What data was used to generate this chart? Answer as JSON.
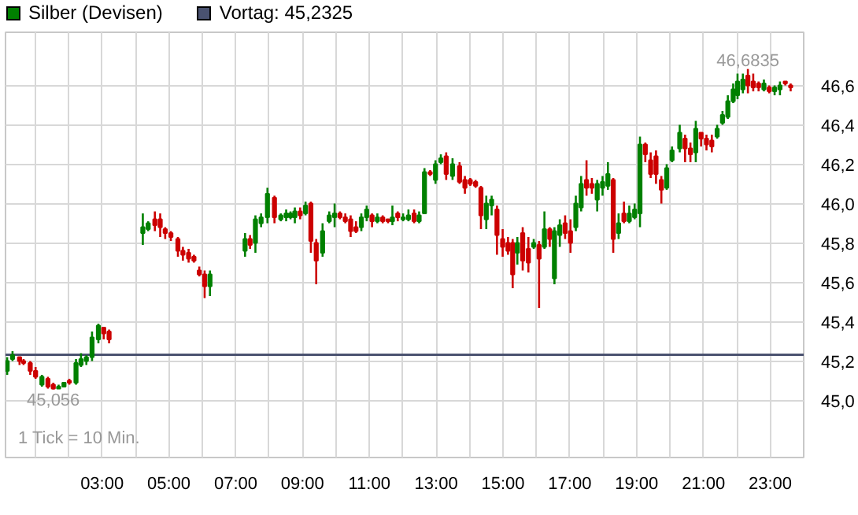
{
  "chart_data": {
    "type": "candlestick",
    "series": [
      {
        "name": "Silber (Devisen)",
        "color": "#008000",
        "x": [
          0.16,
          0.32,
          0.53,
          0.65,
          0.85,
          1.01,
          1.2,
          1.38,
          1.54,
          1.7,
          1.86,
          2.02,
          2.22,
          2.37,
          2.53,
          2.7,
          2.89,
          3.05,
          3.21,
          4.22,
          4.38,
          4.58,
          4.74,
          4.89,
          5.06,
          5.27,
          5.42,
          5.59,
          5.75,
          5.91,
          6.07,
          6.23,
          7.28,
          7.43,
          7.59,
          7.76,
          7.95,
          8.16,
          8.35,
          8.51,
          8.64,
          8.77,
          8.93,
          9.09,
          9.25,
          9.41,
          9.6,
          9.8,
          9.96,
          10.12,
          10.28,
          10.44,
          10.6,
          10.76,
          10.92,
          11.08,
          11.24,
          11.4,
          11.56,
          11.69,
          11.85,
          12.01,
          12.17,
          12.34,
          12.49,
          12.65,
          12.82,
          12.98,
          13.14,
          13.3,
          13.49,
          13.7,
          13.86,
          14.02,
          14.18,
          14.34,
          14.5,
          14.66,
          14.82,
          14.99,
          15.15,
          15.29,
          15.43,
          15.59,
          15.76,
          15.92,
          16.08,
          16.24,
          16.4,
          16.54,
          16.7,
          16.86,
          17.02,
          17.18,
          17.34,
          17.5,
          17.66,
          17.82,
          17.98,
          18.14,
          18.3,
          18.46,
          18.62,
          18.78,
          18.94,
          19.1,
          19.26,
          19.42,
          19.58,
          19.74,
          19.9,
          20.06,
          20.29,
          20.45,
          20.61,
          20.77,
          20.93,
          21.09,
          21.25,
          21.41,
          21.57,
          21.73,
          21.89,
          22.02,
          22.18,
          22.33,
          22.49,
          22.65,
          22.81,
          22.97,
          23.13,
          23.29,
          23.45,
          23.61
        ],
        "ohlc": [
          [
            45.15,
            45.22,
            45.13,
            45.2
          ],
          [
            45.21,
            45.25,
            45.2,
            45.23
          ],
          [
            45.22,
            45.22,
            45.18,
            45.2
          ],
          [
            45.2,
            45.21,
            45.18,
            45.19
          ],
          [
            45.19,
            45.2,
            45.13,
            45.15
          ],
          [
            45.15,
            45.17,
            45.11,
            45.12
          ],
          [
            45.08,
            45.13,
            45.07,
            45.12
          ],
          [
            45.11,
            45.12,
            45.06,
            45.07
          ],
          [
            45.08,
            45.09,
            45.056,
            45.06
          ],
          [
            45.06,
            45.08,
            45.06,
            45.07
          ],
          [
            45.07,
            45.09,
            45.07,
            45.09
          ],
          [
            45.1,
            45.11,
            45.08,
            45.09
          ],
          [
            45.09,
            45.21,
            45.08,
            45.19
          ],
          [
            45.18,
            45.24,
            45.17,
            45.21
          ],
          [
            45.2,
            45.23,
            45.18,
            45.22
          ],
          [
            45.22,
            45.35,
            45.2,
            45.32
          ],
          [
            45.31,
            45.39,
            45.29,
            45.38
          ],
          [
            45.37,
            45.37,
            45.31,
            45.34
          ],
          [
            45.35,
            45.36,
            45.29,
            45.31
          ],
          [
            45.85,
            45.95,
            45.79,
            45.88
          ],
          [
            45.87,
            45.91,
            45.86,
            45.9
          ],
          [
            45.92,
            45.96,
            45.86,
            45.89
          ],
          [
            45.92,
            45.95,
            45.83,
            45.88
          ],
          [
            45.87,
            45.88,
            45.82,
            45.85
          ],
          [
            45.85,
            45.86,
            45.81,
            45.83
          ],
          [
            45.82,
            45.83,
            45.73,
            45.76
          ],
          [
            45.76,
            45.78,
            45.71,
            45.74
          ],
          [
            45.75,
            45.77,
            45.7,
            45.72
          ],
          [
            45.73,
            45.74,
            45.7,
            45.71
          ],
          [
            45.66,
            45.68,
            45.63,
            45.64
          ],
          [
            45.64,
            45.66,
            45.52,
            45.58
          ],
          [
            45.58,
            45.66,
            45.53,
            45.64
          ],
          [
            45.76,
            45.85,
            45.73,
            45.82
          ],
          [
            45.82,
            45.84,
            45.77,
            45.79
          ],
          [
            45.8,
            45.94,
            45.75,
            45.92
          ],
          [
            45.9,
            45.95,
            45.88,
            45.93
          ],
          [
            45.93,
            46.08,
            45.9,
            46.05
          ],
          [
            46.03,
            46.04,
            45.9,
            45.93
          ],
          [
            45.92,
            45.95,
            45.91,
            45.94
          ],
          [
            45.93,
            45.97,
            45.91,
            45.95
          ],
          [
            45.93,
            45.96,
            45.92,
            45.95
          ],
          [
            45.93,
            45.98,
            45.9,
            45.96
          ],
          [
            45.96,
            45.98,
            45.92,
            45.94
          ],
          [
            45.95,
            46.01,
            45.94,
            45.99
          ],
          [
            46.0,
            46.01,
            45.75,
            45.81
          ],
          [
            45.8,
            45.82,
            45.59,
            45.71
          ],
          [
            45.75,
            45.9,
            45.73,
            45.86
          ],
          [
            45.91,
            45.96,
            45.9,
            45.94
          ],
          [
            45.93,
            46.0,
            45.88,
            45.95
          ],
          [
            45.95,
            45.96,
            45.92,
            45.93
          ],
          [
            45.93,
            45.95,
            45.9,
            45.91
          ],
          [
            45.92,
            45.94,
            45.83,
            45.86
          ],
          [
            45.88,
            45.91,
            45.85,
            45.86
          ],
          [
            45.88,
            45.95,
            45.86,
            45.93
          ],
          [
            45.93,
            45.99,
            45.91,
            45.97
          ],
          [
            45.94,
            45.95,
            45.88,
            45.91
          ],
          [
            45.91,
            45.95,
            45.9,
            45.93
          ],
          [
            45.93,
            45.94,
            45.9,
            45.91
          ],
          [
            45.92,
            45.92,
            45.9,
            45.91
          ],
          [
            45.91,
            45.99,
            45.89,
            45.93
          ],
          [
            45.95,
            45.96,
            45.91,
            45.93
          ],
          [
            45.92,
            45.95,
            45.91,
            45.93
          ],
          [
            45.92,
            45.97,
            45.91,
            45.94
          ],
          [
            45.95,
            45.97,
            45.9,
            45.91
          ],
          [
            45.91,
            45.96,
            45.9,
            45.94
          ],
          [
            45.95,
            46.18,
            45.95,
            46.16
          ],
          [
            46.16,
            46.17,
            46.14,
            46.15
          ],
          [
            46.12,
            46.22,
            46.1,
            46.2
          ],
          [
            46.21,
            46.25,
            46.2,
            46.23
          ],
          [
            46.24,
            46.26,
            46.12,
            46.15
          ],
          [
            46.14,
            46.23,
            46.12,
            46.2
          ],
          [
            46.19,
            46.21,
            46.1,
            46.11
          ],
          [
            46.12,
            46.14,
            46.05,
            46.08
          ],
          [
            46.12,
            46.13,
            46.09,
            46.1
          ],
          [
            46.11,
            46.12,
            46.08,
            46.09
          ],
          [
            46.08,
            46.09,
            45.87,
            45.94
          ],
          [
            45.92,
            46.04,
            45.87,
            46.0
          ],
          [
            45.99,
            46.04,
            45.94,
            46.02
          ],
          [
            45.97,
            45.99,
            45.74,
            45.84
          ],
          [
            45.82,
            45.87,
            45.73,
            45.78
          ],
          [
            45.8,
            45.83,
            45.74,
            45.76
          ],
          [
            45.8,
            45.82,
            45.57,
            45.64
          ],
          [
            45.75,
            45.83,
            45.69,
            45.8
          ],
          [
            45.85,
            45.88,
            45.66,
            45.71
          ],
          [
            45.77,
            45.83,
            45.65,
            45.7
          ],
          [
            45.78,
            45.82,
            45.77,
            45.8
          ],
          [
            45.79,
            45.81,
            45.47,
            45.72
          ],
          [
            45.78,
            45.96,
            45.77,
            45.87
          ],
          [
            45.87,
            45.88,
            45.78,
            45.82
          ],
          [
            45.62,
            45.88,
            45.59,
            45.86
          ],
          [
            45.84,
            45.92,
            45.78,
            45.89
          ],
          [
            45.9,
            45.94,
            45.82,
            45.85
          ],
          [
            45.86,
            45.92,
            45.75,
            45.8
          ],
          [
            45.88,
            46.04,
            45.86,
            46.0
          ],
          [
            45.98,
            46.14,
            45.96,
            46.1
          ],
          [
            46.12,
            46.22,
            46.04,
            46.08
          ],
          [
            46.1,
            46.13,
            46.05,
            46.08
          ],
          [
            46.02,
            46.12,
            45.96,
            46.1
          ],
          [
            46.08,
            46.14,
            46.04,
            46.11
          ],
          [
            46.09,
            46.21,
            46.07,
            46.15
          ],
          [
            46.12,
            46.13,
            45.75,
            45.82
          ],
          [
            45.85,
            45.95,
            45.82,
            45.9
          ],
          [
            45.95,
            46.01,
            45.9,
            45.91
          ],
          [
            45.91,
            45.99,
            45.9,
            45.95
          ],
          [
            45.93,
            46.0,
            45.92,
            45.97
          ],
          [
            45.95,
            46.34,
            45.88,
            46.3
          ],
          [
            46.3,
            46.31,
            46.21,
            46.25
          ],
          [
            46.22,
            46.26,
            46.13,
            46.15
          ],
          [
            46.24,
            46.27,
            46.1,
            46.15
          ],
          [
            46.12,
            46.14,
            46.0,
            46.07
          ],
          [
            46.08,
            46.2,
            46.07,
            46.18
          ],
          [
            46.22,
            46.29,
            46.21,
            46.27
          ],
          [
            46.28,
            46.4,
            46.26,
            46.36
          ],
          [
            46.33,
            46.35,
            46.21,
            46.28
          ],
          [
            46.28,
            46.31,
            46.21,
            46.25
          ],
          [
            46.26,
            46.42,
            46.21,
            46.38
          ],
          [
            46.36,
            46.36,
            46.29,
            46.33
          ],
          [
            46.33,
            46.35,
            46.27,
            46.3
          ],
          [
            46.32,
            46.35,
            46.26,
            46.29
          ],
          [
            46.34,
            46.4,
            46.33,
            46.38
          ],
          [
            46.41,
            46.47,
            46.4,
            46.45
          ],
          [
            46.44,
            46.55,
            46.43,
            46.52
          ],
          [
            46.52,
            46.61,
            46.51,
            46.58
          ],
          [
            46.55,
            46.66,
            46.53,
            46.62
          ],
          [
            46.58,
            46.66,
            46.56,
            46.63
          ],
          [
            46.65,
            46.6835,
            46.56,
            46.6
          ],
          [
            46.62,
            46.66,
            46.57,
            46.59
          ],
          [
            46.61,
            46.62,
            46.57,
            46.59
          ],
          [
            46.58,
            46.63,
            46.57,
            46.61
          ],
          [
            46.59,
            46.6,
            46.56,
            46.57
          ],
          [
            46.57,
            46.6,
            46.55,
            46.59
          ],
          [
            46.58,
            46.62,
            46.55,
            46.6
          ],
          [
            46.62,
            46.62,
            46.6,
            46.61
          ],
          [
            46.6,
            46.61,
            46.57,
            46.59
          ]
        ],
        "colors": [
          "#008000",
          "#008000",
          "#cc0000",
          "#cc0000",
          "#cc0000",
          "#cc0000",
          "#008000",
          "#cc0000",
          "#cc0000",
          "#008000",
          "#008000",
          "#cc0000",
          "#008000",
          "#008000",
          "#008000",
          "#008000",
          "#008000",
          "#cc0000",
          "#cc0000",
          "#008000",
          "#008000",
          "#cc0000",
          "#cc0000",
          "#cc0000",
          "#cc0000",
          "#cc0000",
          "#cc0000",
          "#cc0000",
          "#cc0000",
          "#cc0000",
          "#cc0000",
          "#008000",
          "#008000",
          "#cc0000",
          "#008000",
          "#008000",
          "#008000",
          "#cc0000",
          "#008000",
          "#008000",
          "#008000",
          "#008000",
          "#cc0000",
          "#008000",
          "#cc0000",
          "#cc0000",
          "#008000",
          "#008000",
          "#008000",
          "#cc0000",
          "#cc0000",
          "#cc0000",
          "#cc0000",
          "#008000",
          "#008000",
          "#cc0000",
          "#008000",
          "#cc0000",
          "#cc0000",
          "#008000",
          "#cc0000",
          "#008000",
          "#008000",
          "#cc0000",
          "#008000",
          "#008000",
          "#cc0000",
          "#008000",
          "#008000",
          "#cc0000",
          "#008000",
          "#cc0000",
          "#cc0000",
          "#cc0000",
          "#cc0000",
          "#cc0000",
          "#008000",
          "#008000",
          "#cc0000",
          "#cc0000",
          "#cc0000",
          "#cc0000",
          "#008000",
          "#cc0000",
          "#cc0000",
          "#008000",
          "#cc0000",
          "#008000",
          "#cc0000",
          "#008000",
          "#008000",
          "#cc0000",
          "#cc0000",
          "#008000",
          "#008000",
          "#cc0000",
          "#cc0000",
          "#008000",
          "#008000",
          "#008000",
          "#cc0000",
          "#008000",
          "#cc0000",
          "#008000",
          "#008000",
          "#008000",
          "#cc0000",
          "#cc0000",
          "#cc0000",
          "#cc0000",
          "#008000",
          "#008000",
          "#008000",
          "#cc0000",
          "#cc0000",
          "#008000",
          "#cc0000",
          "#cc0000",
          "#cc0000",
          "#008000",
          "#008000",
          "#008000",
          "#008000",
          "#008000",
          "#008000",
          "#cc0000",
          "#cc0000",
          "#cc0000",
          "#008000",
          "#cc0000",
          "#008000",
          "#008000",
          "#cc0000",
          "#cc0000"
        ]
      }
    ],
    "ref_lines": [
      {
        "axis": "y",
        "value": 45.2325,
        "label": "Vortag: 45,2325",
        "color": "#4a5270"
      }
    ],
    "annotations": [
      {
        "text": "46,6835",
        "x": 22.33,
        "y": 46.6835
      },
      {
        "text": "45,056",
        "x": 1.54,
        "y": 45.056
      },
      "1 Tick = 10 Min."
    ],
    "xlim": [
      0.11,
      24.0
    ],
    "xticks": [
      {
        "value": 1,
        "label": null
      },
      {
        "value": 2,
        "label": null
      },
      {
        "value": 3,
        "label": "03:00"
      },
      {
        "value": 4,
        "label": null
      },
      {
        "value": 5,
        "label": "05:00"
      },
      {
        "value": 6,
        "label": null
      },
      {
        "value": 7,
        "label": "07:00"
      },
      {
        "value": 8,
        "label": null
      },
      {
        "value": 9,
        "label": "09:00"
      },
      {
        "value": 10,
        "label": null
      },
      {
        "value": 11,
        "label": "11:00"
      },
      {
        "value": 12,
        "label": null
      },
      {
        "value": 13,
        "label": "13:00"
      },
      {
        "value": 14,
        "label": null
      },
      {
        "value": 15,
        "label": "15:00"
      },
      {
        "value": 16,
        "label": null
      },
      {
        "value": 17,
        "label": "17:00"
      },
      {
        "value": 18,
        "label": null
      },
      {
        "value": 19,
        "label": "19:00"
      },
      {
        "value": 20,
        "label": null
      },
      {
        "value": 21,
        "label": "21:00"
      },
      {
        "value": 22,
        "label": null
      },
      {
        "value": 23,
        "label": "23:00"
      }
    ],
    "ylim": [
      44.71,
      46.87
    ],
    "yticks": [
      {
        "value": 45.0,
        "label": "45,0"
      },
      {
        "value": 45.2,
        "label": "45,2"
      },
      {
        "value": 45.4,
        "label": "45,4"
      },
      {
        "value": 45.6,
        "label": "45,6"
      },
      {
        "value": 45.8,
        "label": "45,8"
      },
      {
        "value": 46.0,
        "label": "46,0"
      },
      {
        "value": 46.2,
        "label": "46,2"
      },
      {
        "value": 46.4,
        "label": "46,4"
      },
      {
        "value": 46.6,
        "label": "46,6"
      }
    ],
    "grid": true,
    "legend": "top left"
  }
}
